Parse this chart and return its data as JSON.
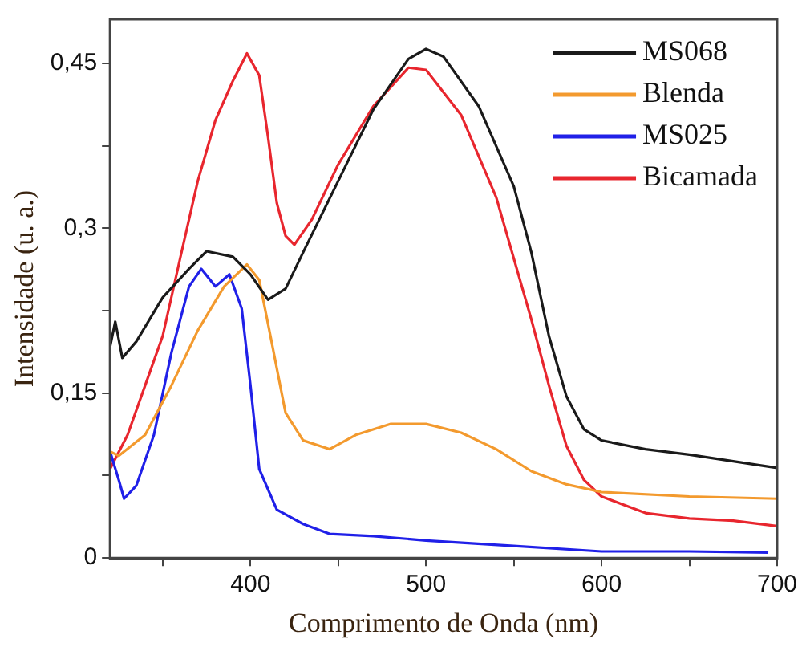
{
  "chart_data": {
    "type": "line",
    "xlabel": "Comprimento de Onda (nm)",
    "ylabel": "Intensidade (u. a.)",
    "xlim": [
      320,
      700
    ],
    "ylim": [
      0,
      0.49
    ],
    "xticks": [
      {
        "value": 350,
        "label": null
      },
      400,
      {
        "value": 450,
        "label": null
      },
      500,
      {
        "value": 550,
        "label": null
      },
      600,
      {
        "value": 650,
        "label": null
      },
      700
    ],
    "yticks": [
      0,
      {
        "value": 0.075,
        "label": null
      },
      {
        "value": 0.15,
        "label": "0,15"
      },
      {
        "value": 0.225,
        "label": null
      },
      {
        "value": 0.3,
        "label": "0,3"
      },
      {
        "value": 0.375,
        "label": null
      },
      {
        "value": 0.45,
        "label": "0,45"
      }
    ],
    "grid": false,
    "legend": "top right",
    "marker": "none",
    "line_style": "solid",
    "series": [
      {
        "name": "MS068",
        "color": "#1a1a1a",
        "x": [
          320,
          323,
          327,
          335,
          350,
          365,
          375,
          390,
          400,
          410,
          420,
          430,
          450,
          470,
          490,
          500,
          510,
          530,
          550,
          560,
          570,
          580,
          590,
          600,
          625,
          650,
          675,
          700
        ],
        "values": [
          0.192,
          0.215,
          0.182,
          0.197,
          0.237,
          0.263,
          0.279,
          0.274,
          0.258,
          0.235,
          0.245,
          0.278,
          0.343,
          0.408,
          0.454,
          0.463,
          0.456,
          0.411,
          0.338,
          0.278,
          0.202,
          0.147,
          0.117,
          0.107,
          0.099,
          0.094,
          0.088,
          0.082
        ]
      },
      {
        "name": "Blenda",
        "color": "#f39a2e",
        "x": [
          320,
          325,
          340,
          355,
          370,
          385,
          398,
          405,
          412,
          420,
          430,
          445,
          460,
          480,
          500,
          520,
          540,
          560,
          580,
          600,
          650,
          700
        ],
        "values": [
          0.097,
          0.093,
          0.112,
          0.157,
          0.207,
          0.247,
          0.267,
          0.253,
          0.197,
          0.132,
          0.107,
          0.099,
          0.112,
          0.122,
          0.122,
          0.114,
          0.099,
          0.079,
          0.067,
          0.06,
          0.056,
          0.054
        ]
      },
      {
        "name": "MS025",
        "color": "#2020e8",
        "x": [
          320,
          325,
          328,
          335,
          345,
          355,
          365,
          372,
          380,
          388,
          395,
          400,
          405,
          415,
          430,
          445,
          470,
          500,
          550,
          600,
          650,
          695
        ],
        "values": [
          0.097,
          0.071,
          0.054,
          0.066,
          0.112,
          0.187,
          0.247,
          0.263,
          0.247,
          0.258,
          0.227,
          0.157,
          0.081,
          0.044,
          0.031,
          0.022,
          0.02,
          0.016,
          0.011,
          0.006,
          0.006,
          0.005
        ]
      },
      {
        "name": "Bicamada",
        "color": "#e8262e",
        "x": [
          320,
          330,
          340,
          350,
          360,
          370,
          380,
          390,
          398,
          405,
          410,
          415,
          420,
          425,
          435,
          450,
          470,
          490,
          500,
          520,
          540,
          560,
          570,
          580,
          590,
          600,
          625,
          650,
          675,
          700
        ],
        "values": [
          0.081,
          0.112,
          0.157,
          0.202,
          0.273,
          0.343,
          0.398,
          0.434,
          0.459,
          0.439,
          0.383,
          0.323,
          0.293,
          0.285,
          0.308,
          0.358,
          0.411,
          0.446,
          0.444,
          0.403,
          0.328,
          0.217,
          0.157,
          0.102,
          0.071,
          0.056,
          0.041,
          0.036,
          0.034,
          0.029
        ]
      }
    ]
  }
}
